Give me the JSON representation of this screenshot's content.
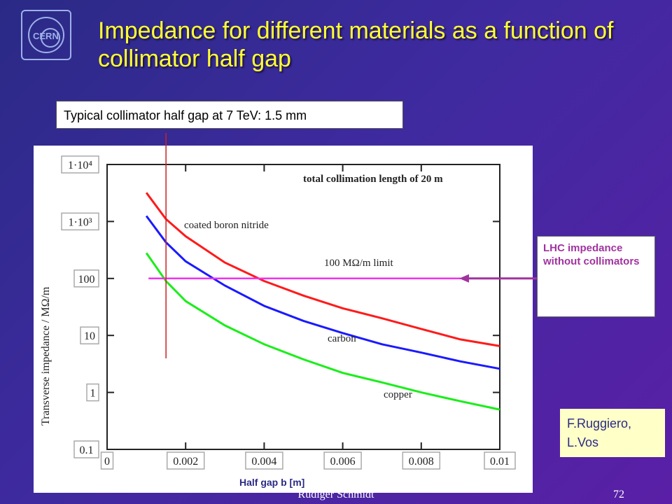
{
  "slide": {
    "title": "Impedance for different materials as a function of collimator half gap",
    "callout": "Typical collimator half gap at 7 TeV: 1.5 mm",
    "lhc_note": "LHC impedance without collimators",
    "credit": "F.Ruggiero, L.Vos",
    "footer_name": "Rüdiger Schmidt",
    "page_number": "72",
    "logo_icon": "cern-logo-icon"
  },
  "chart_data": {
    "type": "line",
    "title": "total collimation length of 20 m",
    "xlabel": "Half gap b [m]",
    "ylabel": "Transverse impedance / MΩ/m",
    "xlim": [
      0,
      0.01
    ],
    "ylim": [
      0.1,
      10000
    ],
    "y_scale": "log",
    "x_ticks": [
      "0",
      "0.002",
      "0.004",
      "0.006",
      "0.008",
      "0.01"
    ],
    "y_ticks": [
      "0.1",
      "1",
      "10",
      "100",
      "1·10³",
      "1·10⁴"
    ],
    "series": [
      {
        "name": "coated boron nitride",
        "color": "#ff1a1a",
        "x": [
          0.001,
          0.0015,
          0.002,
          0.003,
          0.004,
          0.005,
          0.006,
          0.007,
          0.008,
          0.009,
          0.01
        ],
        "y": [
          3200,
          1100,
          550,
          190,
          90,
          50,
          30,
          20,
          13,
          8.5,
          6.5
        ]
      },
      {
        "name": "carbon",
        "color": "#1a1aff",
        "x": [
          0.001,
          0.0015,
          0.002,
          0.003,
          0.004,
          0.005,
          0.006,
          0.007,
          0.008,
          0.009,
          0.01
        ],
        "y": [
          1250,
          430,
          200,
          75,
          33,
          18,
          11,
          7,
          5,
          3.5,
          2.6
        ]
      },
      {
        "name": "copper",
        "color": "#1aee1a",
        "x": [
          0.001,
          0.0015,
          0.002,
          0.003,
          0.004,
          0.005,
          0.006,
          0.007,
          0.008,
          0.009,
          0.01
        ],
        "y": [
          280,
          90,
          40,
          15,
          7,
          3.8,
          2.2,
          1.5,
          1.0,
          0.7,
          0.5
        ]
      }
    ],
    "limit": {
      "label": "100 MΩ/m limit",
      "value": 100,
      "color": "#ee33ee"
    },
    "marker_x": 0.0015
  }
}
